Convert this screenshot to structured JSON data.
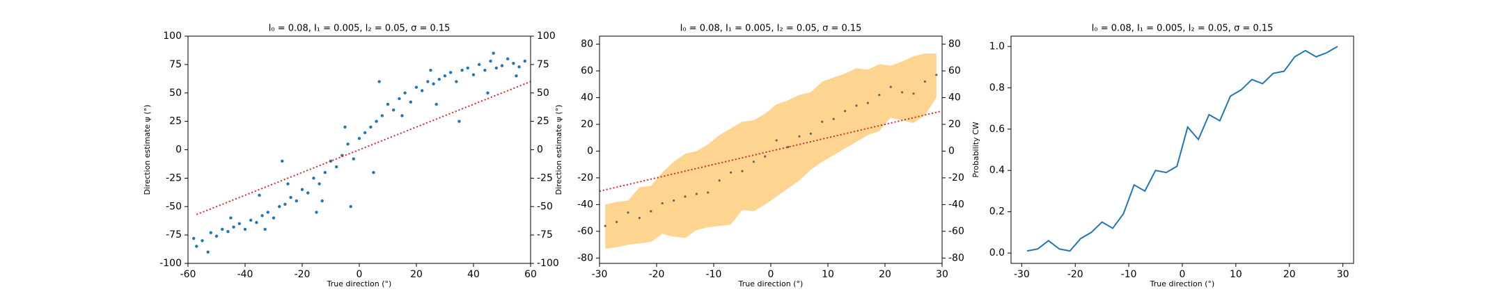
{
  "chart_data": [
    {
      "type": "scatter",
      "title": "I₀ = 0.08, I₁ = 0.005, I₂ = 0.05, σ = 0.15",
      "xlabel": "True direction (°)",
      "ylabel": "Direction estimate ψ (°)",
      "xlim": [
        -60,
        60
      ],
      "ylim": [
        -100,
        100
      ],
      "xticks": [
        -60,
        -40,
        -20,
        0,
        20,
        40,
        60
      ],
      "yticks": [
        -100,
        -75,
        -50,
        -25,
        0,
        25,
        50,
        75,
        100
      ],
      "mirror_y": true,
      "series": [
        {
          "style": "dots",
          "color": "#1f77b4",
          "x": [
            -58,
            -55,
            -52,
            -50,
            -48,
            -46,
            -44,
            -42,
            -40,
            -38,
            -36,
            -34,
            -32,
            -30,
            -28,
            -26,
            -24,
            -22,
            -20,
            -18,
            -16,
            -14,
            -12,
            -10,
            -8,
            -6,
            -4,
            -2,
            0,
            2,
            4,
            6,
            8,
            10,
            12,
            14,
            16,
            18,
            20,
            22,
            24,
            26,
            28,
            30,
            32,
            34,
            36,
            38,
            40,
            42,
            44,
            46,
            48,
            50,
            52,
            54,
            56,
            58,
            -57,
            -45,
            -35,
            -25,
            -15,
            -5,
            5,
            15,
            25,
            35,
            45,
            55,
            -53,
            -33,
            -13,
            7,
            27,
            47,
            -27,
            -3
          ],
          "values": [
            -78,
            -80,
            -73,
            -76,
            -70,
            -72,
            -68,
            -65,
            -70,
            -62,
            -64,
            -58,
            -55,
            -60,
            -50,
            -48,
            -42,
            -45,
            -35,
            -38,
            -25,
            -30,
            -20,
            -10,
            -15,
            -5,
            5,
            -8,
            10,
            15,
            20,
            25,
            30,
            40,
            35,
            45,
            50,
            42,
            55,
            52,
            60,
            58,
            62,
            65,
            68,
            60,
            70,
            72,
            66,
            75,
            70,
            78,
            72,
            74,
            80,
            76,
            73,
            78,
            -85,
            -60,
            -40,
            -30,
            -55,
            20,
            -20,
            30,
            70,
            25,
            50,
            65,
            -90,
            -70,
            -45,
            60,
            40,
            85,
            -10,
            -50
          ]
        },
        {
          "style": "dotted",
          "color": "#d62728",
          "x": [
            -57,
            60
          ],
          "values": [
            -57,
            60
          ]
        }
      ]
    },
    {
      "type": "band",
      "title": "I₀ = 0.08, I₁ = 0.005, I₂ = 0.05, σ = 0.15",
      "xlabel": "True direction (°)",
      "ylabel": "Direction estimate ψ (°)",
      "xlim": [
        -30,
        30
      ],
      "ylim": [
        -84,
        86
      ],
      "xticks": [
        -30,
        -20,
        -10,
        0,
        10,
        20,
        30
      ],
      "yticks": [
        -80,
        -60,
        -40,
        -20,
        0,
        20,
        40,
        60,
        80
      ],
      "mirror_y": true,
      "series": [
        {
          "style": "band",
          "color": "#fdd591",
          "x": [
            -29,
            -27,
            -25,
            -23,
            -21,
            -19,
            -17,
            -15,
            -13,
            -11,
            -9,
            -7,
            -5,
            -3,
            -1,
            1,
            3,
            5,
            7,
            9,
            11,
            13,
            15,
            17,
            19,
            21,
            23,
            25,
            27,
            29
          ],
          "lower": [
            -73,
            -72,
            -70,
            -69,
            -68,
            -62,
            -64,
            -65,
            -59,
            -57,
            -56,
            -55,
            -44,
            -45,
            -40,
            -34,
            -28,
            -22,
            -14,
            -8,
            -3,
            2,
            7,
            12,
            15,
            25,
            23,
            21,
            27,
            40
          ],
          "upper": [
            -40,
            -38,
            -37,
            -27,
            -26,
            -16,
            -8,
            -2,
            0,
            5,
            12,
            17,
            22,
            23,
            28,
            35,
            38,
            42,
            44,
            52,
            55,
            58,
            62,
            61,
            65,
            64,
            67,
            71,
            73,
            73
          ]
        },
        {
          "style": "dots",
          "color": "#666666",
          "x": [
            -29,
            -27,
            -25,
            -23,
            -21,
            -19,
            -17,
            -15,
            -13,
            -11,
            -9,
            -7,
            -5,
            -3,
            -1,
            1,
            3,
            5,
            7,
            9,
            11,
            13,
            15,
            17,
            19,
            21,
            23,
            25,
            27,
            29
          ],
          "values": [
            -56,
            -53,
            -46,
            -50,
            -45,
            -39,
            -37,
            -34,
            -32,
            -31,
            -22,
            -16,
            -15,
            -8,
            -4,
            8,
            3,
            11,
            13,
            22,
            24,
            30,
            34,
            36,
            42,
            48,
            44,
            43,
            52,
            57
          ]
        },
        {
          "style": "dotted",
          "color": "#d62728",
          "x": [
            -30,
            30
          ],
          "values": [
            -30,
            30
          ]
        }
      ]
    },
    {
      "type": "line",
      "title": "I₀ = 0.08, I₁ = 0.005, I₂ = 0.05, σ = 0.15",
      "xlabel": "True direction (°)",
      "ylabel": "Probability CW",
      "xlim": [
        -32,
        32
      ],
      "ylim": [
        -0.05,
        1.05
      ],
      "xticks": [
        -30,
        -20,
        -10,
        0,
        10,
        20,
        30
      ],
      "yticks": [
        {
          "value": 0,
          "label": "0.0"
        },
        0.2,
        0.4,
        0.6,
        0.8,
        {
          "value": 1,
          "label": "1.0"
        }
      ],
      "mirror_y": false,
      "series": [
        {
          "style": "line",
          "color": "#1f77b4",
          "x": [
            -29,
            -27,
            -25,
            -23,
            -21,
            -19,
            -17,
            -15,
            -13,
            -11,
            -9,
            -7,
            -5,
            -3,
            -1,
            1,
            3,
            5,
            7,
            9,
            11,
            13,
            15,
            17,
            19,
            21,
            23,
            25,
            27,
            29
          ],
          "values": [
            0.01,
            0.02,
            0.06,
            0.02,
            0.01,
            0.07,
            0.1,
            0.15,
            0.12,
            0.19,
            0.33,
            0.3,
            0.4,
            0.39,
            0.42,
            0.61,
            0.55,
            0.67,
            0.64,
            0.76,
            0.79,
            0.84,
            0.82,
            0.87,
            0.88,
            0.95,
            0.98,
            0.95,
            0.97,
            1.0
          ]
        }
      ]
    }
  ]
}
